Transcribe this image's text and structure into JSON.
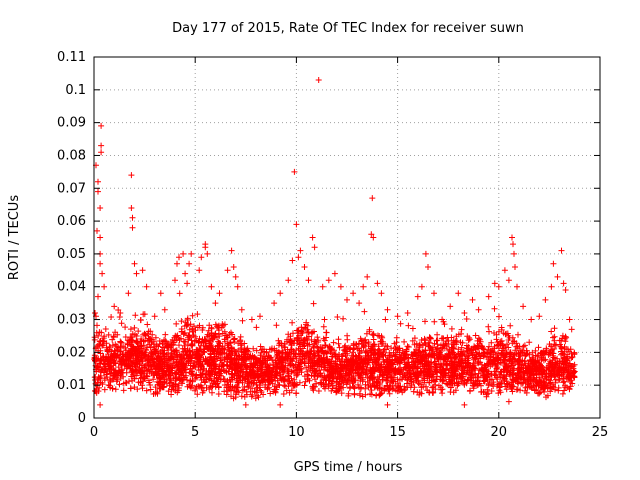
{
  "chart_data": {
    "type": "scatter",
    "title": "Day 177 of 2015, Rate Of TEC Index for receiver suwn",
    "xlabel": "GPS time / hours",
    "ylabel": "ROTI / TECUs",
    "xlim": [
      0,
      25
    ],
    "ylim": [
      0,
      0.11
    ],
    "xticks": [
      0,
      5,
      10,
      15,
      20,
      25
    ],
    "xtick_labels": [
      "0",
      "5",
      "10",
      "15",
      "20",
      "25"
    ],
    "yticks": [
      0,
      0.01,
      0.02,
      0.03,
      0.04,
      0.05,
      0.06,
      0.07,
      0.08,
      0.09,
      0.1,
      0.11
    ],
    "ytick_labels": [
      "0",
      "0.01",
      "0.02",
      "0.03",
      "0.04",
      "0.05",
      "0.06",
      "0.07",
      "0.08",
      "0.09",
      "0.1",
      "0.11"
    ],
    "grid": true,
    "marker": "+",
    "series_color": "#ff0000",
    "time_range_hours": [
      0,
      23.75
    ],
    "baseline_envelope": [
      [
        0.0,
        0.006,
        0.03
      ],
      [
        0.5,
        0.006,
        0.028
      ],
      [
        1.0,
        0.008,
        0.024
      ],
      [
        1.5,
        0.008,
        0.026
      ],
      [
        2.0,
        0.007,
        0.028
      ],
      [
        2.5,
        0.007,
        0.03
      ],
      [
        3.0,
        0.006,
        0.026
      ],
      [
        3.5,
        0.006,
        0.025
      ],
      [
        4.0,
        0.006,
        0.026
      ],
      [
        4.5,
        0.006,
        0.03
      ],
      [
        5.0,
        0.005,
        0.03
      ],
      [
        5.5,
        0.005,
        0.03
      ],
      [
        6.0,
        0.005,
        0.028
      ],
      [
        6.5,
        0.005,
        0.03
      ],
      [
        7.0,
        0.005,
        0.027
      ],
      [
        7.5,
        0.005,
        0.024
      ],
      [
        8.0,
        0.005,
        0.022
      ],
      [
        8.5,
        0.006,
        0.022
      ],
      [
        9.0,
        0.006,
        0.024
      ],
      [
        9.5,
        0.006,
        0.026
      ],
      [
        10.0,
        0.006,
        0.03
      ],
      [
        10.5,
        0.007,
        0.03
      ],
      [
        11.0,
        0.007,
        0.028
      ],
      [
        11.5,
        0.007,
        0.024
      ],
      [
        12.0,
        0.006,
        0.024
      ],
      [
        12.5,
        0.006,
        0.026
      ],
      [
        13.0,
        0.006,
        0.026
      ],
      [
        13.5,
        0.005,
        0.028
      ],
      [
        14.0,
        0.005,
        0.026
      ],
      [
        14.5,
        0.006,
        0.024
      ],
      [
        15.0,
        0.006,
        0.024
      ],
      [
        15.5,
        0.006,
        0.024
      ],
      [
        16.0,
        0.006,
        0.026
      ],
      [
        16.5,
        0.006,
        0.026
      ],
      [
        17.0,
        0.007,
        0.026
      ],
      [
        17.5,
        0.007,
        0.026
      ],
      [
        18.0,
        0.006,
        0.026
      ],
      [
        18.5,
        0.006,
        0.026
      ],
      [
        19.0,
        0.006,
        0.026
      ],
      [
        19.5,
        0.006,
        0.026
      ],
      [
        20.0,
        0.006,
        0.028
      ],
      [
        20.5,
        0.006,
        0.028
      ],
      [
        21.0,
        0.006,
        0.024
      ],
      [
        21.5,
        0.006,
        0.022
      ],
      [
        22.0,
        0.006,
        0.022
      ],
      [
        22.5,
        0.006,
        0.024
      ],
      [
        23.0,
        0.006,
        0.028
      ],
      [
        23.5,
        0.006,
        0.024
      ],
      [
        23.75,
        0.006,
        0.022
      ]
    ],
    "points": [
      [
        0.1,
        0.077
      ],
      [
        0.2,
        0.072
      ],
      [
        0.2,
        0.069
      ],
      [
        0.3,
        0.064
      ],
      [
        0.15,
        0.057
      ],
      [
        0.3,
        0.055
      ],
      [
        0.35,
        0.089
      ],
      [
        0.35,
        0.083
      ],
      [
        0.35,
        0.081
      ],
      [
        0.3,
        0.05
      ],
      [
        0.3,
        0.047
      ],
      [
        0.4,
        0.044
      ],
      [
        0.5,
        0.04
      ],
      [
        0.2,
        0.037
      ],
      [
        0.05,
        0.032
      ],
      [
        0.1,
        0.031
      ],
      [
        1.0,
        0.034
      ],
      [
        1.3,
        0.032
      ],
      [
        1.7,
        0.038
      ],
      [
        1.85,
        0.074
      ],
      [
        1.85,
        0.064
      ],
      [
        1.9,
        0.061
      ],
      [
        1.9,
        0.058
      ],
      [
        2.0,
        0.047
      ],
      [
        2.1,
        0.044
      ],
      [
        2.4,
        0.045
      ],
      [
        2.6,
        0.04
      ],
      [
        3.0,
        0.031
      ],
      [
        3.3,
        0.038
      ],
      [
        3.5,
        0.033
      ],
      [
        4.0,
        0.042
      ],
      [
        4.1,
        0.047
      ],
      [
        4.2,
        0.049
      ],
      [
        4.4,
        0.05
      ],
      [
        4.5,
        0.044
      ],
      [
        4.6,
        0.041
      ],
      [
        4.7,
        0.047
      ],
      [
        4.8,
        0.05
      ],
      [
        5.2,
        0.045
      ],
      [
        5.3,
        0.049
      ],
      [
        5.5,
        0.052
      ],
      [
        5.5,
        0.053
      ],
      [
        5.6,
        0.05
      ],
      [
        5.8,
        0.04
      ],
      [
        6.0,
        0.035
      ],
      [
        6.2,
        0.038
      ],
      [
        6.6,
        0.045
      ],
      [
        6.8,
        0.051
      ],
      [
        6.9,
        0.046
      ],
      [
        7.0,
        0.043
      ],
      [
        7.1,
        0.04
      ],
      [
        7.3,
        0.033
      ],
      [
        7.8,
        0.03
      ],
      [
        8.2,
        0.031
      ],
      [
        8.9,
        0.035
      ],
      [
        9.2,
        0.038
      ],
      [
        9.6,
        0.042
      ],
      [
        9.8,
        0.048
      ],
      [
        9.9,
        0.075
      ],
      [
        10.0,
        0.059
      ],
      [
        10.1,
        0.049
      ],
      [
        10.2,
        0.051
      ],
      [
        10.4,
        0.046
      ],
      [
        10.6,
        0.042
      ],
      [
        10.8,
        0.055
      ],
      [
        10.9,
        0.052
      ],
      [
        11.1,
        0.103
      ],
      [
        11.3,
        0.04
      ],
      [
        11.6,
        0.042
      ],
      [
        11.9,
        0.044
      ],
      [
        12.2,
        0.04
      ],
      [
        12.5,
        0.036
      ],
      [
        12.8,
        0.038
      ],
      [
        13.1,
        0.035
      ],
      [
        13.3,
        0.04
      ],
      [
        13.5,
        0.043
      ],
      [
        13.75,
        0.067
      ],
      [
        13.7,
        0.056
      ],
      [
        13.8,
        0.055
      ],
      [
        14.0,
        0.041
      ],
      [
        14.2,
        0.038
      ],
      [
        14.5,
        0.033
      ],
      [
        15.0,
        0.031
      ],
      [
        15.5,
        0.032
      ],
      [
        16.0,
        0.037
      ],
      [
        16.2,
        0.04
      ],
      [
        16.4,
        0.05
      ],
      [
        16.5,
        0.046
      ],
      [
        16.8,
        0.038
      ],
      [
        17.2,
        0.03
      ],
      [
        17.6,
        0.034
      ],
      [
        18.0,
        0.038
      ],
      [
        18.3,
        0.032
      ],
      [
        18.7,
        0.036
      ],
      [
        19.0,
        0.033
      ],
      [
        19.5,
        0.037
      ],
      [
        19.8,
        0.041
      ],
      [
        20.0,
        0.04
      ],
      [
        20.3,
        0.045
      ],
      [
        20.5,
        0.042
      ],
      [
        20.65,
        0.055
      ],
      [
        20.7,
        0.053
      ],
      [
        20.75,
        0.05
      ],
      [
        20.8,
        0.046
      ],
      [
        20.9,
        0.04
      ],
      [
        21.2,
        0.034
      ],
      [
        21.6,
        0.03
      ],
      [
        22.0,
        0.031
      ],
      [
        22.3,
        0.036
      ],
      [
        22.6,
        0.04
      ],
      [
        22.7,
        0.047
      ],
      [
        22.9,
        0.043
      ],
      [
        23.1,
        0.051
      ],
      [
        23.2,
        0.041
      ],
      [
        23.3,
        0.039
      ],
      [
        23.5,
        0.03
      ],
      [
        23.6,
        0.027
      ],
      [
        7.5,
        0.004
      ],
      [
        14.5,
        0.004
      ],
      [
        18.3,
        0.004
      ],
      [
        0.3,
        0.004
      ],
      [
        9.2,
        0.004
      ],
      [
        20.5,
        0.005
      ]
    ]
  }
}
